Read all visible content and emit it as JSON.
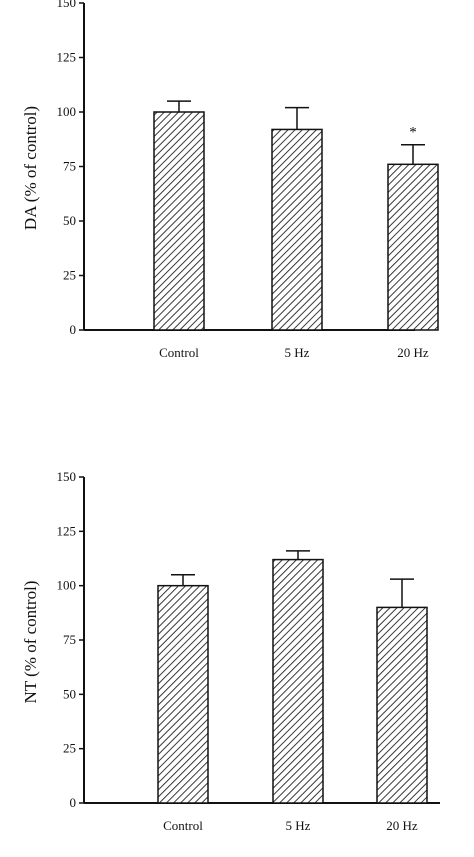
{
  "chart_data": [
    {
      "type": "bar",
      "categories": [
        "Control",
        "5 Hz",
        "20 Hz"
      ],
      "values": [
        100,
        92,
        76
      ],
      "errors": [
        5,
        10,
        9
      ],
      "annotations": [
        "",
        "",
        "*"
      ],
      "ylabel": "DA (% of control)",
      "xlabel": "",
      "ylim": [
        0,
        150
      ],
      "yticks": [
        0,
        25,
        50,
        75,
        100,
        125,
        150
      ],
      "grid": false,
      "bar_fill": "hatched"
    },
    {
      "type": "bar",
      "categories": [
        "Control",
        "5 Hz",
        "20 Hz"
      ],
      "values": [
        100,
        112,
        90
      ],
      "errors": [
        5,
        4,
        13
      ],
      "annotations": [
        "",
        "",
        ""
      ],
      "ylabel": "NT (% of control)",
      "xlabel": "",
      "ylim": [
        0,
        150
      ],
      "yticks": [
        0,
        25,
        50,
        75,
        100,
        125,
        150
      ],
      "grid": false,
      "bar_fill": "hatched"
    }
  ]
}
